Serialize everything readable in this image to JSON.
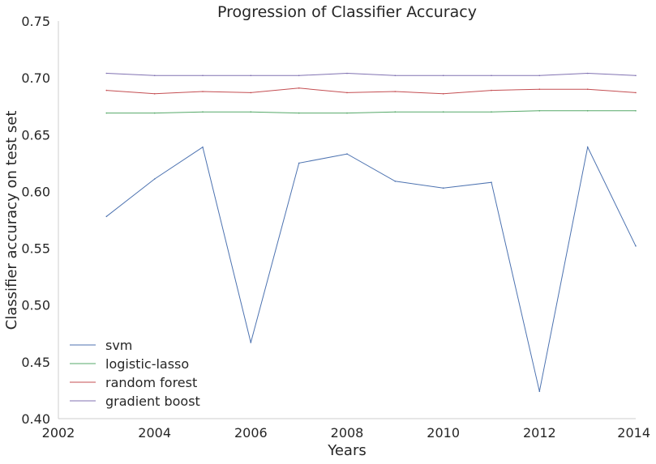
{
  "chart_data": {
    "type": "line",
    "title": "Progression of Classifier Accuracy",
    "xlabel": "Years",
    "ylabel": "Classifier accuracy on test set",
    "xlim": [
      2002,
      2014
    ],
    "ylim": [
      0.4,
      0.75
    ],
    "x_ticks": [
      "2002",
      "2004",
      "2006",
      "2008",
      "2010",
      "2012",
      "2014"
    ],
    "x_tick_values": [
      2002,
      2004,
      2006,
      2008,
      2010,
      2012,
      2014
    ],
    "y_ticks": [
      "0.40",
      "0.45",
      "0.50",
      "0.55",
      "0.60",
      "0.65",
      "0.70",
      "0.75"
    ],
    "y_tick_values": [
      0.4,
      0.45,
      0.5,
      0.55,
      0.6,
      0.65,
      0.7,
      0.75
    ],
    "grid": false,
    "legend_position": "lower-left",
    "x": [
      2003,
      2004,
      2005,
      2006,
      2007,
      2008,
      2009,
      2010,
      2011,
      2012,
      2013,
      2014
    ],
    "series": [
      {
        "name": "svm",
        "color": "#4c72b0",
        "values": [
          0.578,
          0.611,
          0.639,
          0.467,
          0.625,
          0.633,
          0.609,
          0.603,
          0.608,
          0.424,
          0.639,
          0.552
        ]
      },
      {
        "name": "logistic-lasso",
        "color": "#55a868",
        "values": [
          0.669,
          0.669,
          0.67,
          0.67,
          0.669,
          0.669,
          0.67,
          0.67,
          0.67,
          0.671,
          0.671,
          0.671
        ]
      },
      {
        "name": "random forest",
        "color": "#c44e52",
        "values": [
          0.689,
          0.686,
          0.688,
          0.687,
          0.691,
          0.687,
          0.688,
          0.686,
          0.689,
          0.69,
          0.69,
          0.687
        ]
      },
      {
        "name": "gradient boost",
        "color": "#8172b2",
        "values": [
          0.704,
          0.702,
          0.702,
          0.702,
          0.702,
          0.704,
          0.702,
          0.702,
          0.702,
          0.702,
          0.704,
          0.702
        ]
      }
    ]
  }
}
